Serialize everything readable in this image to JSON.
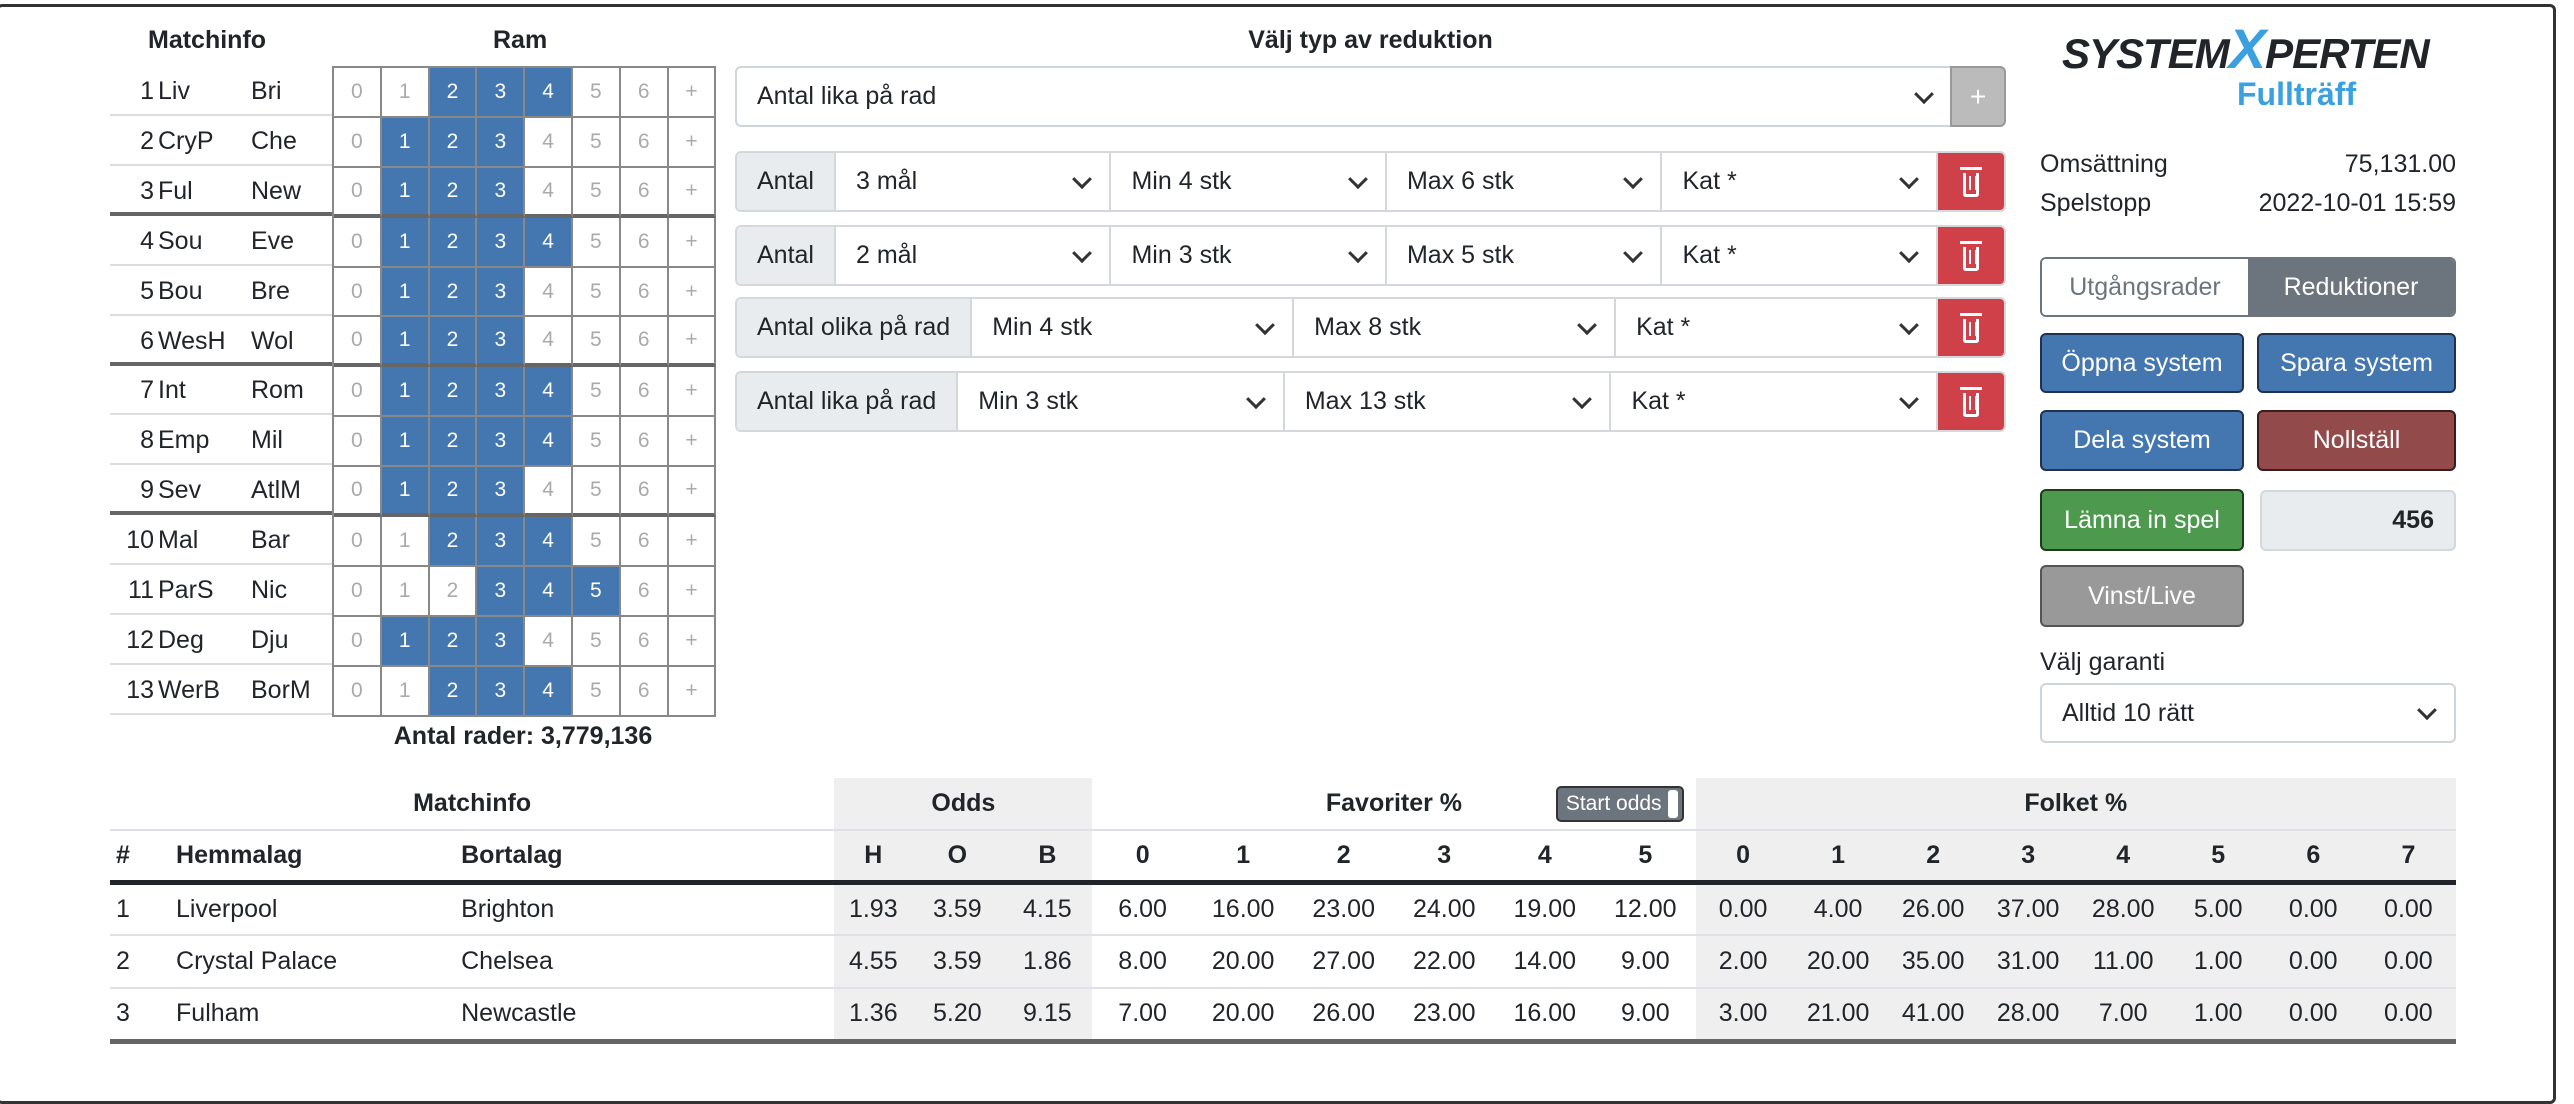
{
  "left": {
    "matchinfo_header": "Matchinfo",
    "ram_header": "Ram",
    "cell_labels": [
      "0",
      "1",
      "2",
      "3",
      "4",
      "5",
      "6",
      "+"
    ],
    "matches": [
      {
        "n": "1",
        "home": "Liv",
        "away": "Bri",
        "selected": [
          "2",
          "3",
          "4"
        ]
      },
      {
        "n": "2",
        "home": "CryP",
        "away": "Che",
        "selected": [
          "1",
          "2",
          "3"
        ]
      },
      {
        "n": "3",
        "home": "Ful",
        "away": "New",
        "selected": [
          "1",
          "2",
          "3"
        ]
      },
      {
        "n": "4",
        "home": "Sou",
        "away": "Eve",
        "selected": [
          "1",
          "2",
          "3",
          "4"
        ]
      },
      {
        "n": "5",
        "home": "Bou",
        "away": "Bre",
        "selected": [
          "1",
          "2",
          "3"
        ]
      },
      {
        "n": "6",
        "home": "WesH",
        "away": "Wol",
        "selected": [
          "1",
          "2",
          "3"
        ]
      },
      {
        "n": "7",
        "home": "Int",
        "away": "Rom",
        "selected": [
          "1",
          "2",
          "3",
          "4"
        ]
      },
      {
        "n": "8",
        "home": "Emp",
        "away": "Mil",
        "selected": [
          "1",
          "2",
          "3",
          "4"
        ]
      },
      {
        "n": "9",
        "home": "Sev",
        "away": "AtlM",
        "selected": [
          "1",
          "2",
          "3"
        ]
      },
      {
        "n": "10",
        "home": "Mal",
        "away": "Bar",
        "selected": [
          "2",
          "3",
          "4"
        ]
      },
      {
        "n": "11",
        "home": "ParS",
        "away": "Nic",
        "selected": [
          "3",
          "4",
          "5"
        ]
      },
      {
        "n": "12",
        "home": "Deg",
        "away": "Dju",
        "selected": [
          "1",
          "2",
          "3"
        ]
      },
      {
        "n": "13",
        "home": "WerB",
        "away": "BorM",
        "selected": [
          "2",
          "3",
          "4"
        ]
      }
    ],
    "antal_rader": "Antal rader: 3,779,136"
  },
  "reduction": {
    "title": "Välj typ av reduktion",
    "type_select": "Antal lika på rad",
    "add_label": "+",
    "rows": [
      {
        "label": "Antal",
        "fields": [
          "3 mål",
          "Min 4 stk",
          "Max 6 stk",
          "Kat *"
        ]
      },
      {
        "label": "Antal",
        "fields": [
          "2 mål",
          "Min 3 stk",
          "Max 5 stk",
          "Kat *"
        ]
      },
      {
        "label": "Antal olika på rad",
        "fields": [
          "Min 4 stk",
          "Max 8 stk",
          "Kat *"
        ]
      },
      {
        "label": "Antal lika på rad",
        "fields": [
          "Min 3 stk",
          "Max 13 stk",
          "Kat *"
        ]
      }
    ]
  },
  "right": {
    "logo": {
      "system": "SYSTEM",
      "x": "X",
      "perten": "PERTEN",
      "sub": "Fullträff"
    },
    "omsattning_label": "Omsättning",
    "omsattning_value": "75,131.00",
    "spelstopp_label": "Spelstopp",
    "spelstopp_value": "2022-10-01 15:59",
    "tab_utgangsrader": "Utgångsrader",
    "tab_reduktioner": "Reduktioner",
    "open": "Öppna system",
    "save": "Spara system",
    "share": "Dela system",
    "reset": "Nollställ",
    "submit": "Lämna in spel",
    "count": "456",
    "vinst": "Vinst/Live",
    "garanti_label": "Välj garanti",
    "garanti_value": "Alltid 10 rätt"
  },
  "table": {
    "group_headers": {
      "matchinfo": "Matchinfo",
      "odds": "Odds",
      "favoriter": "Favoriter %",
      "start_odds": "Start odds",
      "folket": "Folket %"
    },
    "columns": [
      "#",
      "Hemmalag",
      "Bortalag",
      "H",
      "O",
      "B",
      "0",
      "1",
      "2",
      "3",
      "4",
      "5",
      "0",
      "1",
      "2",
      "3",
      "4",
      "5",
      "6",
      "7"
    ],
    "rows": [
      [
        "1",
        "Liverpool",
        "Brighton",
        "1.93",
        "3.59",
        "4.15",
        "6.00",
        "16.00",
        "23.00",
        "24.00",
        "19.00",
        "12.00",
        "0.00",
        "4.00",
        "26.00",
        "37.00",
        "28.00",
        "5.00",
        "0.00",
        "0.00"
      ],
      [
        "2",
        "Crystal Palace",
        "Chelsea",
        "4.55",
        "3.59",
        "1.86",
        "8.00",
        "20.00",
        "27.00",
        "22.00",
        "14.00",
        "9.00",
        "2.00",
        "20.00",
        "35.00",
        "31.00",
        "11.00",
        "1.00",
        "0.00",
        "0.00"
      ],
      [
        "3",
        "Fulham",
        "Newcastle",
        "1.36",
        "5.20",
        "9.15",
        "7.00",
        "20.00",
        "26.00",
        "23.00",
        "16.00",
        "9.00",
        "3.00",
        "21.00",
        "41.00",
        "28.00",
        "7.00",
        "1.00",
        "0.00",
        "0.00"
      ]
    ]
  },
  "colors": {
    "selected": "#4477b0",
    "danger": "#d04048",
    "logo_blue": "#3aa0e0"
  }
}
